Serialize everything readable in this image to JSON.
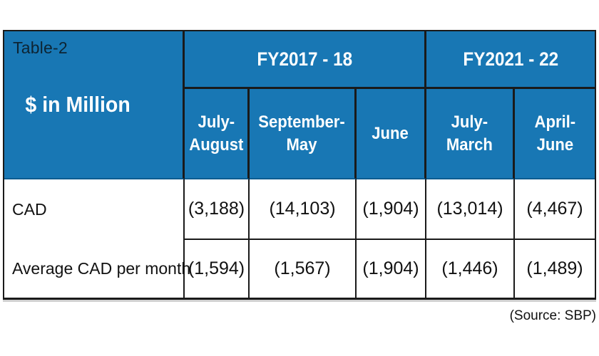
{
  "chart_data": {
    "type": "table",
    "title": "Table-2",
    "unit_label": "$ in Million",
    "column_groups": [
      {
        "label": "FY2017 - 18",
        "span": 3
      },
      {
        "label": "FY2021 - 22",
        "span": 2
      }
    ],
    "columns": [
      {
        "line1": "July-",
        "line2": "August"
      },
      {
        "line1": "September-",
        "line2": "May"
      },
      {
        "line1": "June",
        "line2": ""
      },
      {
        "line1": "July-",
        "line2": "March"
      },
      {
        "line1": "April-",
        "line2": "June"
      }
    ],
    "rows": [
      {
        "label": "CAD",
        "values": [
          "(3,188)",
          "(14,103)",
          "(1,904)",
          "(13,014)",
          "(4,467)"
        ]
      },
      {
        "label": "Average CAD per month",
        "values": [
          "(1,594)",
          "(1,567)",
          "(1,904)",
          "(1,446)",
          "(1,489)"
        ]
      }
    ],
    "source": "(Source: SBP)"
  },
  "colors": {
    "header_blue": "#1877b4",
    "header_edge_blue": "#0d5c90",
    "border_dark": "#1a1a1a",
    "title_text": "#0d2433",
    "header_text": "#ffffff",
    "body_text": "#111111"
  }
}
